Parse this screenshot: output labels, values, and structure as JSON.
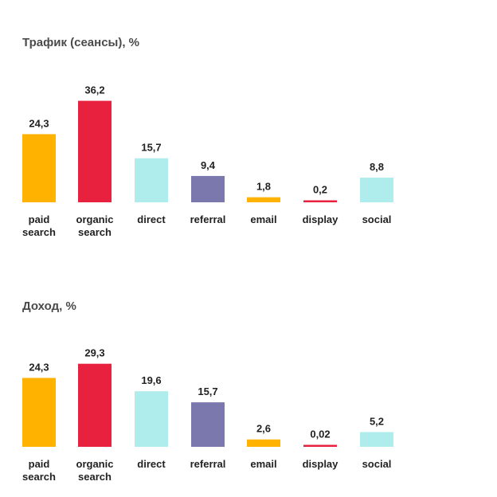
{
  "colors": {
    "paid_search": "#FFB200",
    "organic_search": "#E8213F",
    "direct": "#AEEDEC",
    "referral": "#7B78AE",
    "email": "#FFB200",
    "display": "#E8213F",
    "social": "#AEEDEC"
  },
  "chart_data": [
    {
      "type": "bar",
      "title": "Трафик (сеансы), %",
      "categories": [
        [
          "paid",
          "search"
        ],
        [
          "organic",
          "search"
        ],
        [
          "direct"
        ],
        [
          "referral"
        ],
        [
          "email"
        ],
        [
          "display"
        ],
        [
          "social"
        ]
      ],
      "values": [
        24.3,
        36.2,
        15.7,
        9.4,
        1.8,
        0.2,
        8.8
      ],
      "value_labels": [
        "24,3",
        "36,2",
        "15,7",
        "9,4",
        "1,8",
        "0,2",
        "8,8"
      ],
      "bar_colors": [
        "#FFB200",
        "#E8213F",
        "#AEEDEC",
        "#7B78AE",
        "#FFB200",
        "#E8213F",
        "#AEEDEC"
      ],
      "grid": false,
      "legend": "none"
    },
    {
      "type": "bar",
      "title": "Доход, %",
      "categories": [
        [
          "paid",
          "search"
        ],
        [
          "organic",
          "search"
        ],
        [
          "direct"
        ],
        [
          "referral"
        ],
        [
          "email"
        ],
        [
          "display"
        ],
        [
          "social"
        ]
      ],
      "values": [
        24.3,
        29.3,
        19.6,
        15.7,
        2.6,
        0.02,
        5.2
      ],
      "value_labels": [
        "24,3",
        "29,3",
        "19,6",
        "15,7",
        "2,6",
        "0,02",
        "5,2"
      ],
      "bar_colors": [
        "#FFB200",
        "#E8213F",
        "#AEEDEC",
        "#7B78AE",
        "#FFB200",
        "#E8213F",
        "#AEEDEC"
      ],
      "grid": false,
      "legend": "none"
    }
  ]
}
